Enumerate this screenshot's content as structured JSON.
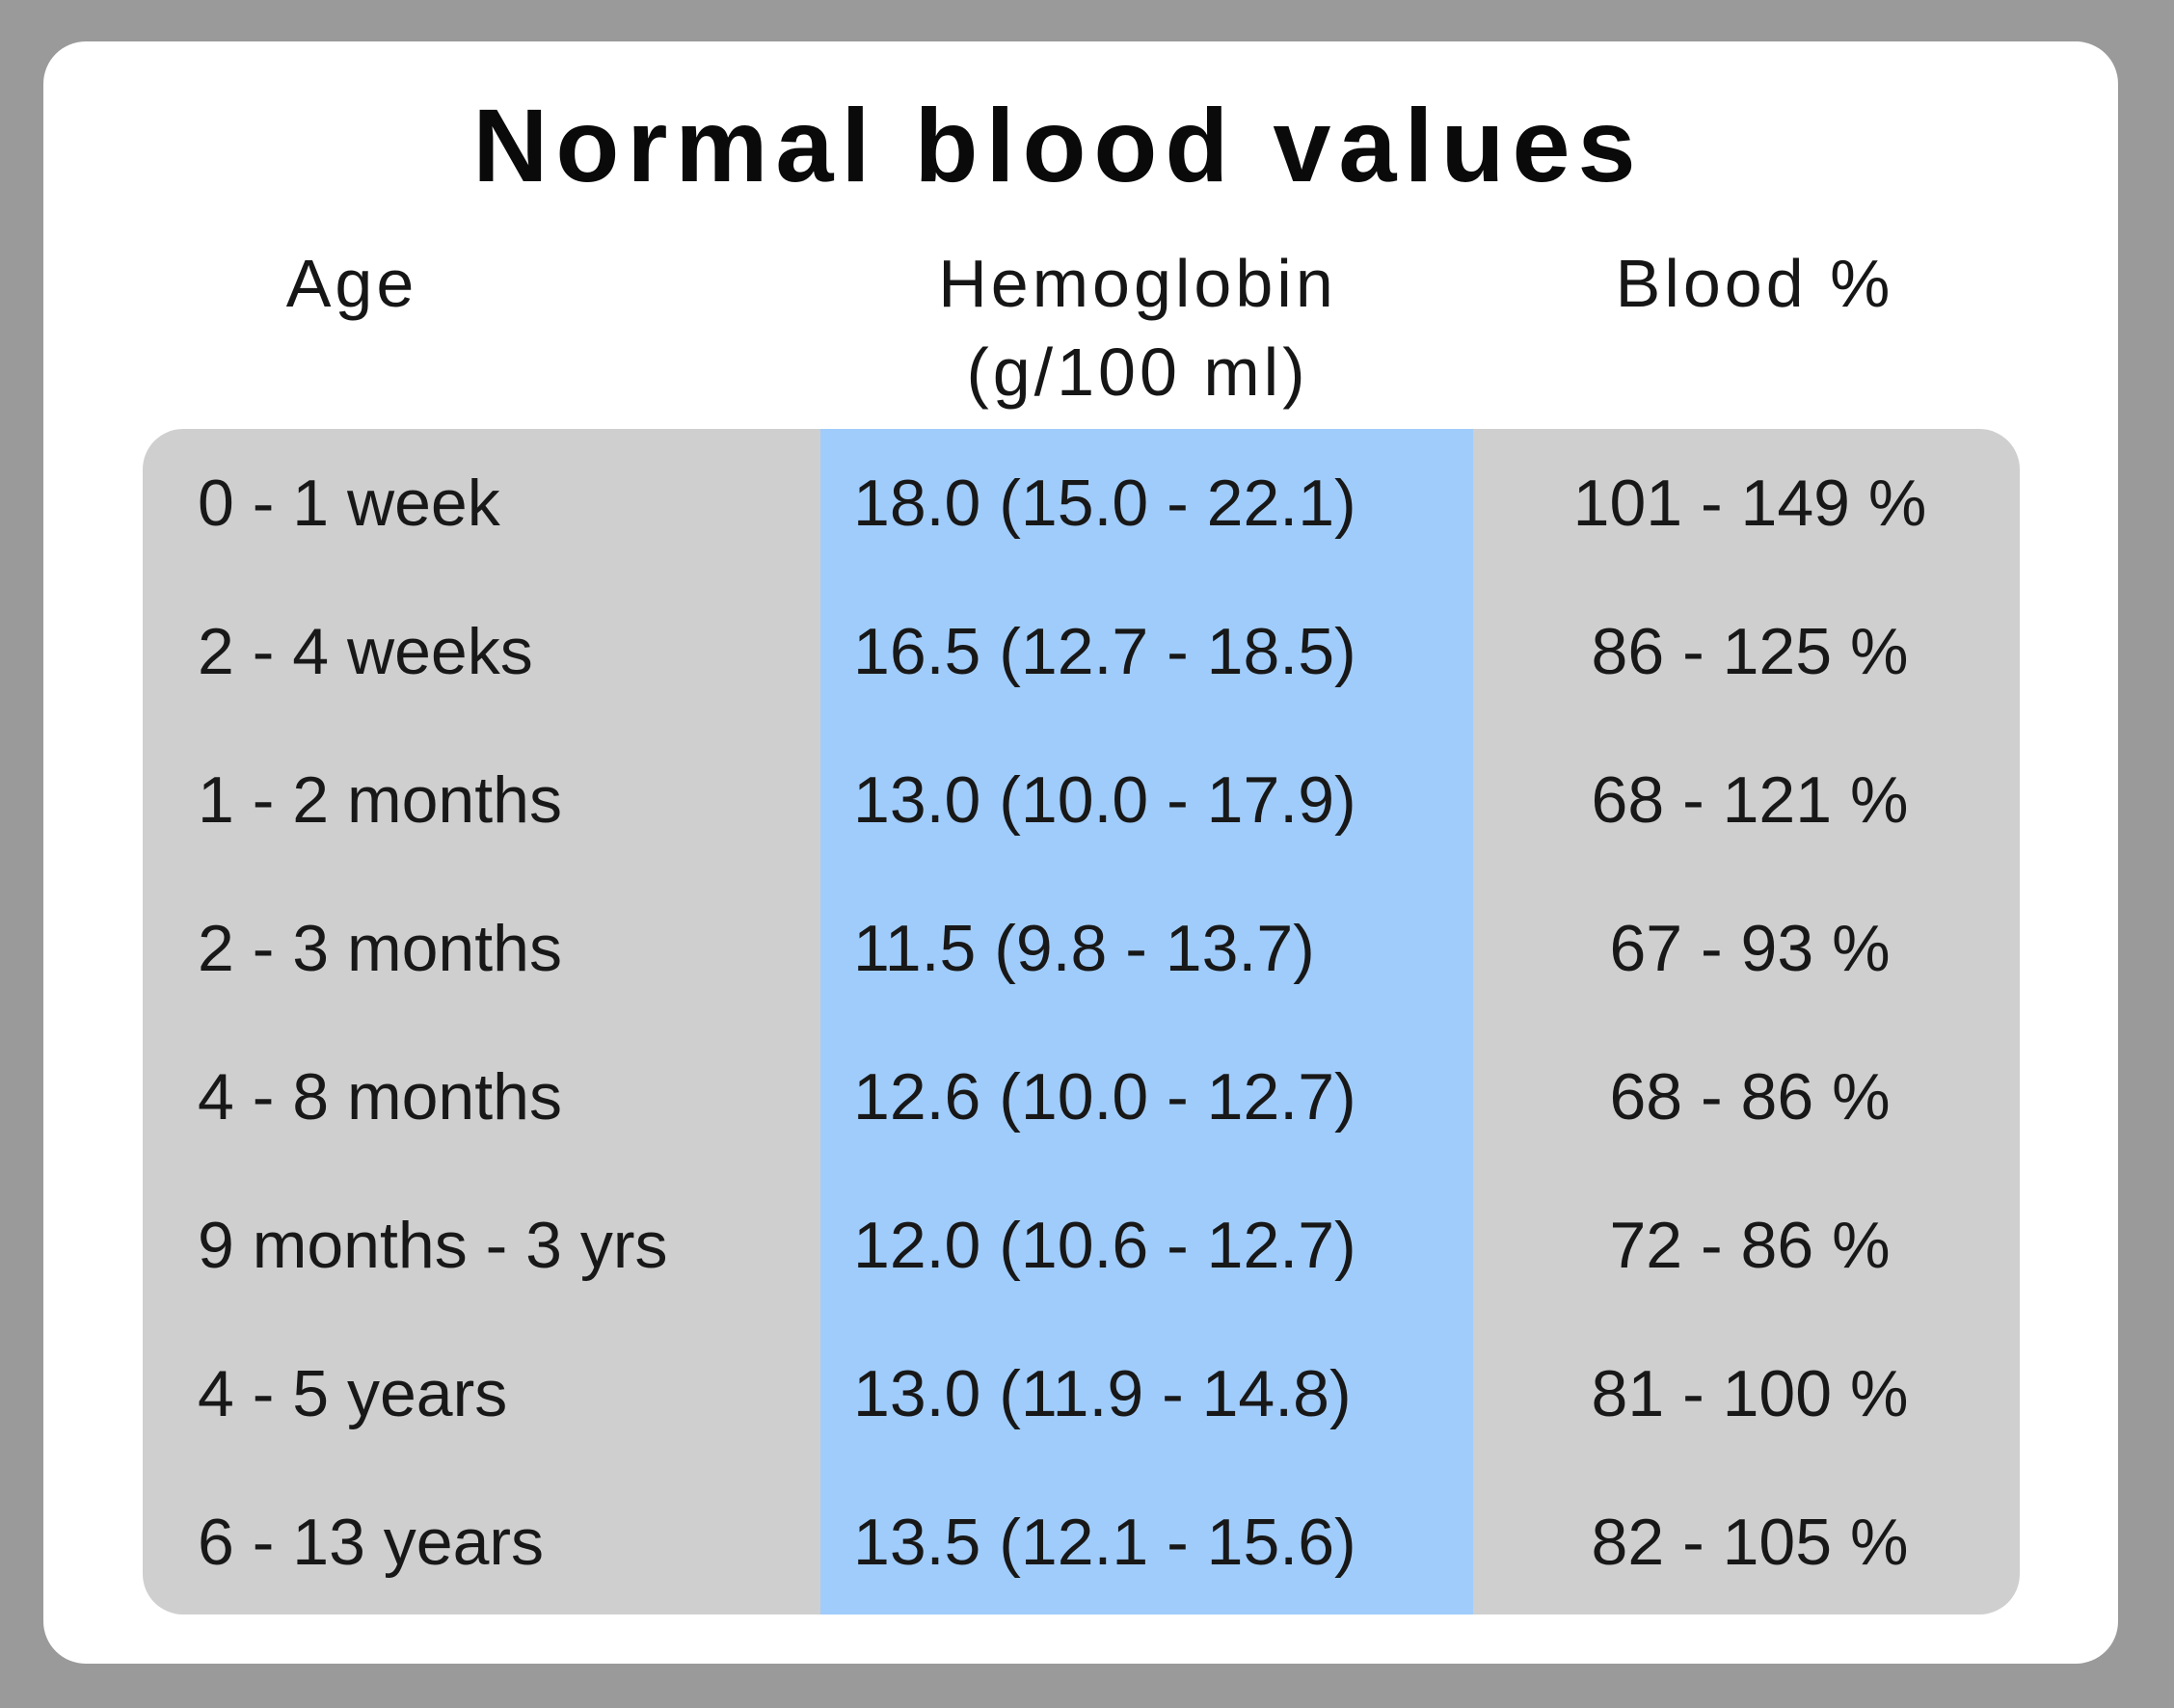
{
  "chart_data": {
    "type": "table",
    "title": "Normal blood values",
    "columns": {
      "age": "Age",
      "hemoglobin": [
        "Hemoglobin",
        "(g/100 ml)"
      ],
      "blood": "Blood %"
    },
    "rows": [
      {
        "age": "0 - 1 week",
        "hemoglobin": "18.0 (15.0 - 22.1)",
        "blood": "101 - 149 %"
      },
      {
        "age": "2 - 4 weeks",
        "hemoglobin": "16.5 (12.7 - 18.5)",
        "blood": "86 - 125 %"
      },
      {
        "age": "1 - 2 months",
        "hemoglobin": "13.0 (10.0 - 17.9)",
        "blood": "68 - 121 %"
      },
      {
        "age": "2 - 3 months",
        "hemoglobin": "11.5 (9.8 - 13.7)",
        "blood": "67 - 93 %"
      },
      {
        "age": "4 - 8 months",
        "hemoglobin": "12.6 (10.0 - 12.7)",
        "blood": "68 - 86 %"
      },
      {
        "age": "9 months - 3 yrs",
        "hemoglobin": "12.0 (10.6 - 12.7)",
        "blood": "72 - 86 %"
      },
      {
        "age": "4 - 5 years",
        "hemoglobin": "13.0 (11.9 - 14.8)",
        "blood": "81 - 100 %"
      },
      {
        "age": "6 - 13 years",
        "hemoglobin": "13.5 (12.1 - 15.6)",
        "blood": "82 - 105 %"
      }
    ]
  },
  "colors": {
    "frame": "#9a9a9a",
    "card": "#ffffff",
    "table_bg": "#cfcfcf",
    "hemoglobin_highlight": "#a0ccfb"
  }
}
